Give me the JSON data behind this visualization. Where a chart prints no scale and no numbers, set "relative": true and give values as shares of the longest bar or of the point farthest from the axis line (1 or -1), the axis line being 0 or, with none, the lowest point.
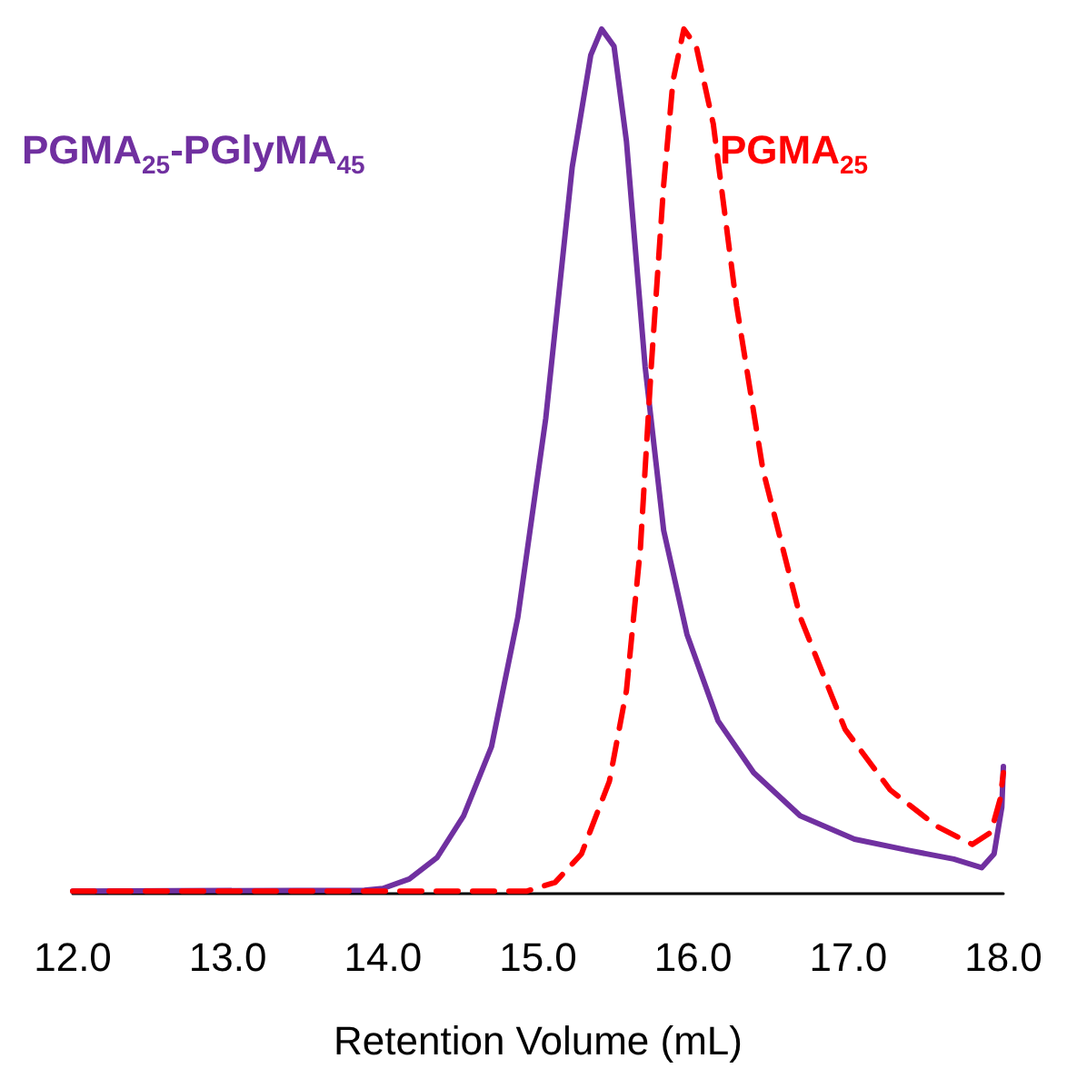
{
  "chart_data": {
    "type": "line",
    "relative": true,
    "xlabel": "Retention Volume (mL)",
    "xlim": [
      12,
      18
    ],
    "xticks": [
      {
        "value": 12,
        "label": "12.0"
      },
      {
        "value": 13,
        "label": "13.0"
      },
      {
        "value": 14,
        "label": "14.0"
      },
      {
        "value": 15,
        "label": "15.0"
      },
      {
        "value": 16,
        "label": "16.0"
      },
      {
        "value": 17,
        "label": "17.0"
      },
      {
        "value": 18,
        "label": "18.0"
      }
    ],
    "tick_labels": "x",
    "marker": "none",
    "series": [
      {
        "name": "PGMA$_{25}$-PGlyMA$_{45}$",
        "color": "#7030a0",
        "line_style": "solid",
        "x": [
          12.0,
          13.88,
          14.0,
          14.17,
          14.35,
          14.52,
          14.7,
          14.87,
          15.05,
          15.22,
          15.34,
          15.41,
          15.49,
          15.57,
          15.69,
          15.81,
          15.96,
          16.16,
          16.39,
          16.69,
          17.04,
          17.39,
          17.68,
          17.86,
          17.94,
          17.99,
          18.0
        ],
        "values": [
          0.003,
          0.004,
          0.006,
          0.017,
          0.042,
          0.09,
          0.17,
          0.32,
          0.55,
          0.84,
          0.97,
          1,
          0.98,
          0.87,
          0.61,
          0.42,
          0.3,
          0.2,
          0.14,
          0.09,
          0.063,
          0.05,
          0.04,
          0.03,
          0.046,
          0.1,
          0.147
        ]
      },
      {
        "name": "PGMA$_{25}$",
        "color": "#ff0000",
        "line_style": "dashed",
        "x": [
          12.0,
          14.93,
          15.11,
          15.28,
          15.46,
          15.57,
          15.66,
          15.73,
          15.81,
          15.87,
          15.94,
          16.02,
          16.13,
          16.28,
          16.45,
          16.69,
          16.98,
          17.27,
          17.57,
          17.8,
          17.92,
          17.98,
          18.0
        ],
        "values": [
          0.003,
          0.003,
          0.013,
          0.046,
          0.13,
          0.235,
          0.4,
          0.61,
          0.82,
          0.94,
          1,
          0.98,
          0.89,
          0.68,
          0.49,
          0.32,
          0.19,
          0.12,
          0.078,
          0.057,
          0.071,
          0.11,
          0.14
        ]
      }
    ]
  }
}
